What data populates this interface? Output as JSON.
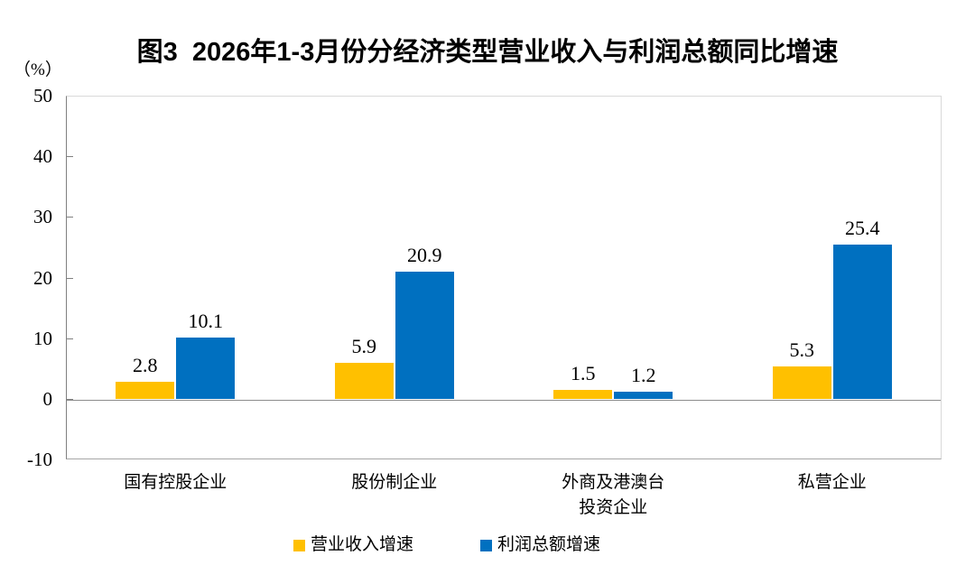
{
  "title": "图3  2026年1-3月份分经济类型营业收入与利润总额同比增速",
  "chart_data": {
    "type": "bar",
    "title": "图3  2026年1-3月份分经济类型营业收入与利润总额同比增速",
    "unit_label": "（%）",
    "categories": [
      "国有控股企业",
      "股份制企业",
      "外商及港澳台\n投资企业",
      "私营企业"
    ],
    "series": [
      {
        "name": "营业收入增速",
        "color": "#FFC000",
        "values": [
          2.8,
          5.9,
          1.5,
          5.3
        ]
      },
      {
        "name": "利润总额增速",
        "color": "#0070C0",
        "values": [
          10.1,
          20.9,
          1.2,
          25.4
        ]
      }
    ],
    "ylim": [
      -10,
      50
    ],
    "yticks": [
      50,
      40,
      30,
      20,
      10,
      0,
      -10
    ],
    "grid": false,
    "zero_line": true,
    "legend_position": "bottom",
    "xlabel": "",
    "ylabel": "（%）"
  },
  "colors": {
    "bar_yellow": "#FFC000",
    "bar_blue": "#0070C0",
    "axis_line": "#808080",
    "plot_border": "#d9d9d9",
    "zero_line": "#8c8c8c",
    "text": "#000000",
    "background": "#ffffff"
  }
}
